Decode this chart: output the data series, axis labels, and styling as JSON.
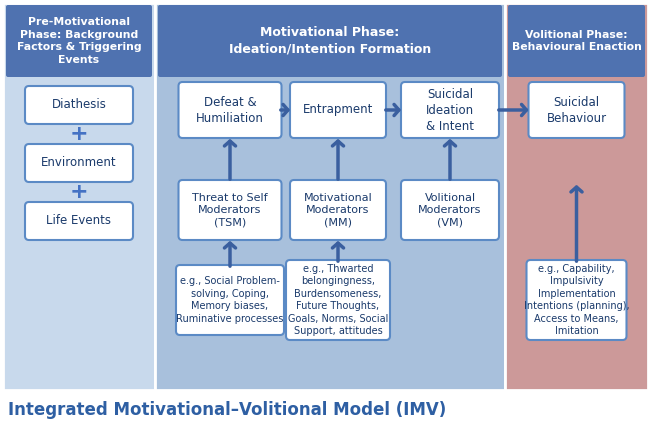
{
  "title": "Integrated Motivational–Volitional Model (IMV)",
  "title_fontsize": 12,
  "title_color": "#2E5FA3",
  "title_weight": "bold",
  "bg_color": "#FFFFFF",
  "col1_bg": "#C8D9EC",
  "col2_bg": "#A8C0DC",
  "col3_bg": "#CC9999",
  "header_bg": "#4F72B0",
  "header1_text": "Pre-Motivational\nPhase: Background\nFactors & Triggering\nEvents",
  "header2_text": "Motivational Phase:\nIdeation/Intention Formation",
  "header3_text": "Volitional Phase:\nBehavioural Enaction",
  "box_bg": "#FFFFFF",
  "box_border": "#4472C4",
  "box_border2": "#5B8AC5",
  "arrow_color": "#3A5F9F",
  "node_diathesis": "Diathesis",
  "node_environment": "Environment",
  "node_life_events": "Life Events",
  "node_defeat": "Defeat &\nHumiliation",
  "node_entrapment": "Entrapment",
  "node_suicidal_ideation": "Suicidal\nIdeation\n& Intent",
  "node_suicidal_behaviour": "Suicidal\nBehaviour",
  "node_tsm": "Threat to Self\nModerators\n(TSM)",
  "node_mm": "Motivational\nModerators\n(MM)",
  "node_vm": "Volitional\nModerators\n(VM)",
  "node_tsm_eg": "e.g., Social Problem-\nsolving, Coping,\nMemory biases,\nRuminative processes",
  "node_mm_eg": "e.g., Thwarted\nbelongingness,\nBurdensomeness,\nFuture Thoughts,\nGoals, Norms, Social\nSupport, attitudes",
  "node_vm_eg": "e.g., Capability,\nImpulsivity\nImplementation\nIntentions (planning),\nAccess to Means,\nImitation"
}
